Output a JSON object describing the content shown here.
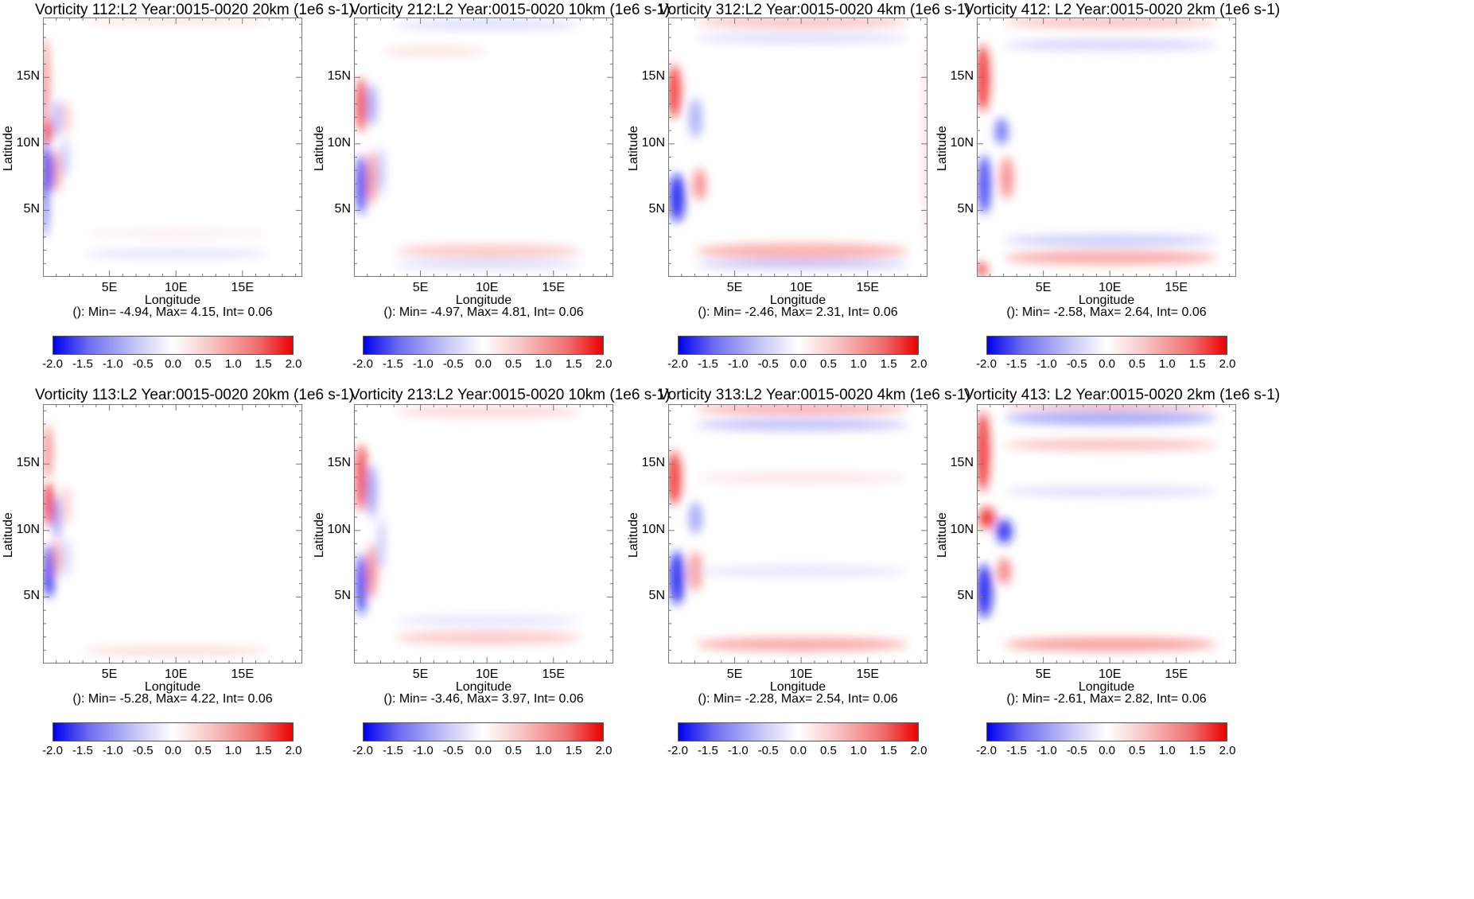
{
  "chart_data": [
    {
      "type": "heatmap",
      "title": "Vorticity 112:L2 Year:0015-0020 20km (1e6 s-1)",
      "stats": "(): Min= -4.94, Max= 4.15, Int= 0.06",
      "min": -4.94,
      "max": 4.15,
      "interval": 0.06,
      "blobs": [
        [
          0.3,
          11,
          0.35,
          0.9,
          2.0
        ],
        [
          0.4,
          8,
          0.35,
          1.6,
          -1.8
        ],
        [
          0.1,
          7,
          0.15,
          4,
          -2.0
        ],
        [
          0.1,
          14,
          0.1,
          4,
          1.8
        ],
        [
          1.0,
          8,
          0.3,
          1.6,
          0.8
        ],
        [
          1.0,
          12,
          0.3,
          1.4,
          -0.7
        ],
        [
          1.6,
          9,
          0.3,
          1.5,
          -0.5
        ],
        [
          1.7,
          12,
          0.3,
          1.3,
          0.5
        ],
        [
          10,
          19.3,
          7,
          0.2,
          0.4
        ],
        [
          10,
          1.8,
          7,
          0.3,
          -0.3
        ],
        [
          10,
          3.3,
          7,
          0.25,
          0.2
        ]
      ]
    },
    {
      "type": "heatmap",
      "title": "Vorticity 212:L2 Year:0015-0020 10km (1e6 s-1)",
      "stats": "(): Min= -4.97, Max= 4.81, Int= 0.06",
      "min": -4.97,
      "max": 4.81,
      "interval": 0.06,
      "blobs": [
        [
          0.5,
          13,
          0.4,
          2.0,
          1.8
        ],
        [
          0.5,
          7,
          0.4,
          2.2,
          -1.8
        ],
        [
          1.3,
          7.5,
          0.35,
          2.0,
          1.0
        ],
        [
          1.3,
          13,
          0.35,
          1.6,
          -0.8
        ],
        [
          2.0,
          8,
          0.3,
          1.8,
          -0.5
        ],
        [
          10,
          19,
          7,
          0.4,
          -0.3
        ],
        [
          10,
          2,
          7,
          0.5,
          0.5
        ],
        [
          10,
          1,
          7,
          0.3,
          -0.4
        ],
        [
          6,
          17,
          4,
          0.4,
          0.25
        ]
      ]
    },
    {
      "type": "heatmap",
      "title": "Vorticity 312:L2 Year:0015-0020 4km (1e6 s-1)",
      "stats": "(): Min= -2.46, Max= 2.31, Int= 0.06",
      "min": -2.46,
      "max": 2.31,
      "interval": 0.06,
      "blobs": [
        [
          0.4,
          14,
          0.5,
          2.0,
          1.7
        ],
        [
          0.6,
          6,
          0.6,
          1.8,
          -1.9
        ],
        [
          2.3,
          7,
          0.5,
          1.2,
          1.0
        ],
        [
          2.0,
          12,
          0.5,
          1.5,
          -0.7
        ],
        [
          10,
          19.2,
          8,
          0.4,
          0.6
        ],
        [
          10,
          18,
          8,
          0.4,
          -0.3
        ],
        [
          10,
          2,
          8,
          0.6,
          0.7
        ],
        [
          10,
          1,
          8,
          0.3,
          -0.6
        ],
        [
          19.5,
          10,
          0.4,
          8,
          0.3
        ]
      ]
    },
    {
      "type": "heatmap",
      "title": "Vorticity 412: L2 Year:0015-0020 2km (1e6 s-1)",
      "stats": "(): Min= -2.58, Max= 2.64, Int= 0.06",
      "min": -2.58,
      "max": 2.64,
      "interval": 0.06,
      "blobs": [
        [
          0.4,
          15,
          0.5,
          2.5,
          1.8
        ],
        [
          0.5,
          7,
          0.5,
          2.2,
          -1.6
        ],
        [
          1.8,
          11,
          0.5,
          1.0,
          -1.2
        ],
        [
          2.2,
          7.5,
          0.5,
          1.6,
          1.0
        ],
        [
          10,
          19.2,
          8,
          0.4,
          0.6
        ],
        [
          10,
          17.5,
          8,
          0.4,
          -0.4
        ],
        [
          10,
          1.5,
          8,
          0.5,
          0.8
        ],
        [
          10,
          2.8,
          8,
          0.4,
          -0.5
        ],
        [
          0.3,
          0.6,
          0.4,
          0.5,
          1.8
        ]
      ]
    },
    {
      "type": "heatmap",
      "title": "Vorticity 113:L2 Year:0015-0020 20km (1e6 s-1)",
      "stats": "(): Min= -5.28, Max= 4.22, Int= 0.06",
      "min": -5.28,
      "max": 4.22,
      "interval": 0.06,
      "blobs": [
        [
          0.4,
          12,
          0.4,
          1.6,
          2.0
        ],
        [
          0.4,
          7,
          0.4,
          2.0,
          -2.0
        ],
        [
          0.3,
          16,
          0.3,
          2.0,
          1.2
        ],
        [
          1.0,
          11,
          0.3,
          1.6,
          -0.9
        ],
        [
          1.0,
          8,
          0.3,
          1.4,
          0.8
        ],
        [
          1.7,
          12,
          0.3,
          1.5,
          0.5
        ],
        [
          1.7,
          8,
          0.3,
          1.5,
          -0.4
        ],
        [
          10,
          1,
          7,
          0.3,
          0.4
        ]
      ]
    },
    {
      "type": "heatmap",
      "title": "Vorticity 213:L2 Year:0015-0020 10km (1e6 s-1)",
      "stats": "(): Min= -3.46, Max= 3.97, Int= 0.06",
      "min": -3.46,
      "max": 3.97,
      "interval": 0.06,
      "blobs": [
        [
          0.5,
          14,
          0.4,
          2.5,
          1.9
        ],
        [
          0.5,
          6,
          0.4,
          2.3,
          -1.8
        ],
        [
          1.3,
          7,
          0.35,
          2.0,
          1.1
        ],
        [
          1.3,
          13,
          0.35,
          2.0,
          -0.9
        ],
        [
          2.0,
          9,
          0.3,
          2.0,
          -0.5
        ],
        [
          10,
          19,
          7,
          0.4,
          0.4
        ],
        [
          10,
          2,
          7,
          0.5,
          0.5
        ],
        [
          10,
          3.3,
          7,
          0.3,
          -0.3
        ]
      ]
    },
    {
      "type": "heatmap",
      "title": "Vorticity 313:L2 Year:0015-0020 4km (1e6 s-1)",
      "stats": "(): Min= -2.28, Max= 2.54, Int= 0.06",
      "min": -2.28,
      "max": 2.54,
      "interval": 0.06,
      "blobs": [
        [
          0.4,
          14,
          0.5,
          2.0,
          1.8
        ],
        [
          0.6,
          6.5,
          0.6,
          2.0,
          -1.8
        ],
        [
          2.0,
          7,
          0.5,
          1.5,
          0.9
        ],
        [
          2.0,
          11,
          0.5,
          1.2,
          -0.8
        ],
        [
          10,
          19.2,
          8,
          0.4,
          0.8
        ],
        [
          10,
          18,
          8,
          0.4,
          -0.6
        ],
        [
          10,
          1.5,
          8,
          0.5,
          0.8
        ],
        [
          10,
          14,
          8,
          0.4,
          0.25
        ],
        [
          10,
          7,
          8,
          0.4,
          -0.25
        ]
      ]
    },
    {
      "type": "heatmap",
      "title": "Vorticity 413: L2 Year:0015-0020 2km (1e6 s-1)",
      "stats": "(): Min= -2.61, Max= 2.82, Int= 0.06",
      "min": -2.61,
      "max": 2.82,
      "interval": 0.06,
      "blobs": [
        [
          0.4,
          16,
          0.5,
          3.0,
          1.8
        ],
        [
          0.7,
          11,
          0.6,
          0.8,
          1.9
        ],
        [
          2.0,
          10,
          0.6,
          0.9,
          -1.8
        ],
        [
          0.5,
          5.5,
          0.6,
          2.0,
          -1.9
        ],
        [
          2.0,
          7,
          0.5,
          1.0,
          1.1
        ],
        [
          10,
          18.5,
          8,
          0.5,
          -0.8
        ],
        [
          10,
          19.5,
          8,
          0.3,
          0.7
        ],
        [
          10,
          1.5,
          8,
          0.5,
          0.9
        ],
        [
          10,
          16.5,
          8,
          0.4,
          0.6
        ],
        [
          10,
          13,
          8,
          0.4,
          -0.3
        ]
      ]
    }
  ],
  "axes": {
    "xlabel": "Longitude",
    "ylabel": "Latitude",
    "xlim": [
      0,
      19.5
    ],
    "ylim": [
      0,
      19.5
    ],
    "xticks": [
      {
        "value": 5,
        "label": "5E"
      },
      {
        "value": 10,
        "label": "10E"
      },
      {
        "value": 15,
        "label": "15E"
      }
    ],
    "yticks": [
      {
        "value": 5,
        "label": "5N"
      },
      {
        "value": 10,
        "label": "10N"
      },
      {
        "value": 15,
        "label": "15N"
      }
    ]
  },
  "colorbar": {
    "range": [
      -2.0,
      2.0
    ],
    "tick_labels": [
      "-2.0",
      "-1.5",
      "-1.0",
      "-0.5",
      "0.0",
      "0.5",
      "1.0",
      "1.5",
      "2.0"
    ],
    "colormap": [
      "#0000ee",
      "#ffffff",
      "#ee0000"
    ]
  }
}
